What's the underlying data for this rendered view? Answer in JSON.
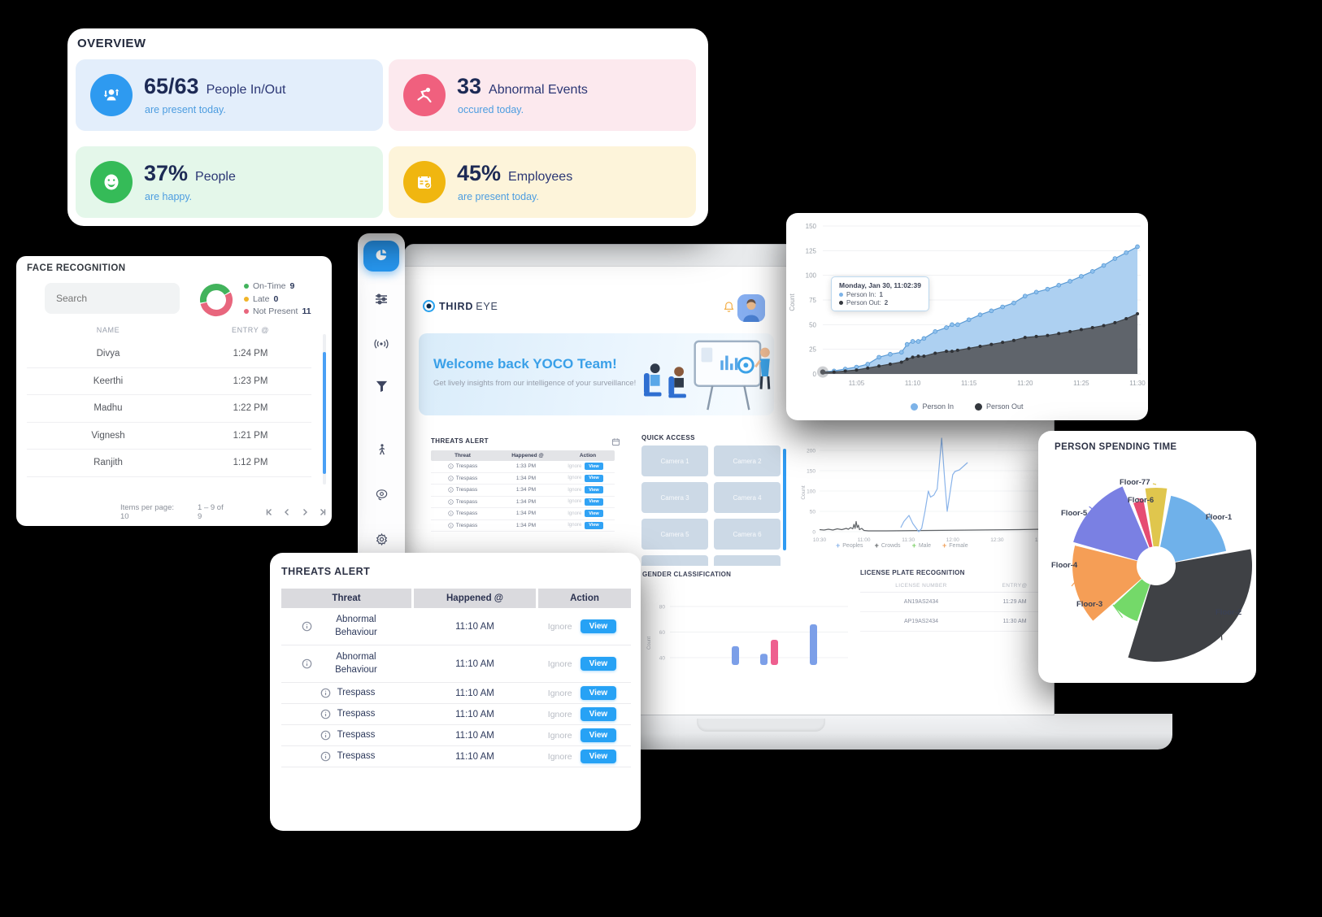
{
  "overview": {
    "title": "OVERVIEW",
    "stats": [
      {
        "value": "65/63",
        "label": "People In/Out",
        "sub": "are present today.",
        "tile_bg": "#e3eefb",
        "icon_bg": "#2e9af0",
        "icon": "people-inout"
      },
      {
        "value": "33",
        "label": "Abnormal Events",
        "sub": "occured today.",
        "tile_bg": "#fce9ee",
        "icon_bg": "#f0607e",
        "icon": "abnormal-event"
      },
      {
        "value": "37%",
        "label": "People",
        "sub": "are happy.",
        "tile_bg": "#e4f7ea",
        "icon_bg": "#35bb58",
        "icon": "happy-face"
      },
      {
        "value": "45%",
        "label": "Employees",
        "sub": "are present today.",
        "tile_bg": "#fdf4da",
        "icon_bg": "#f0b610",
        "icon": "employees-calendar"
      }
    ]
  },
  "face_recognition": {
    "title": "FACE RECOGNITION",
    "search_placeholder": "Search",
    "columns": [
      "NAME",
      "ENTRY @"
    ],
    "rows": [
      [
        "Divya",
        "1:24 PM"
      ],
      [
        "Keerthi",
        "1:23 PM"
      ],
      [
        "Madhu",
        "1:22 PM"
      ],
      [
        "Vignesh",
        "1:21 PM"
      ],
      [
        "Ranjith",
        "1:12 PM"
      ]
    ],
    "items_per_page_label": "Items per page: 10",
    "range_label": "1 – 9 of 9"
  },
  "sidebar": {
    "icons": [
      "dashboard-pie",
      "sliders",
      "broadcast",
      "filter",
      "pedestrian",
      "ai-vision",
      "settings"
    ]
  },
  "dashboard": {
    "logo_primary": "THIRD",
    "logo_secondary": "EYE",
    "welcome_title": "Welcome back YOCO Team!",
    "welcome_sub": "Get lively insights from our intelligence of your surveillance!",
    "threats_mini": {
      "title": "THREATS ALERT",
      "columns": [
        "Threat",
        "Happened @",
        "Action"
      ],
      "rows": [
        [
          "Trespass",
          "1:33 PM"
        ],
        [
          "Trespass",
          "1:34 PM"
        ],
        [
          "Trespass",
          "1:34 PM"
        ],
        [
          "Trespass",
          "1:34 PM"
        ],
        [
          "Trespass",
          "1:34 PM"
        ],
        [
          "Trespass",
          "1:34 PM"
        ]
      ],
      "ignore_label": "Ignore",
      "view_label": "View"
    },
    "quick_access": {
      "title": "QUICK ACCESS",
      "cameras": [
        "Camera 1",
        "Camera 2",
        "Camera 3",
        "Camera 4",
        "Camera 5",
        "Camera 6",
        "",
        ""
      ]
    },
    "license": {
      "title": "LICENSE PLATE RECOGNITION",
      "columns": [
        "LICENSE NUMBER",
        "ENTRY@"
      ],
      "rows": [
        [
          "AN19AS2434",
          "11:29 AM"
        ],
        [
          "AP19AS2434",
          "11:30 AM"
        ]
      ]
    }
  },
  "threats_card": {
    "title": "THREATS ALERT",
    "columns": [
      "Threat",
      "Happened @",
      "Action"
    ],
    "rows": [
      {
        "threat": "Abnormal Behaviour",
        "time": "11:10 AM"
      },
      {
        "threat": "Abnormal Behaviour",
        "time": "11:10 AM"
      },
      {
        "threat": "Trespass",
        "time": "11:10 AM"
      },
      {
        "threat": "Trespass",
        "time": "11:10 AM"
      },
      {
        "threat": "Trespass",
        "time": "11:10 AM"
      },
      {
        "threat": "Trespass",
        "time": "11:10 AM"
      }
    ],
    "ignore_label": "Ignore",
    "view_label": "View"
  },
  "chart_data": [
    {
      "id": "person_in_out",
      "type": "area",
      "ylabel": "Count",
      "ylim": [
        0,
        150
      ],
      "yticks": [
        0,
        25,
        50,
        75,
        100,
        125,
        150
      ],
      "xticks": [
        "11:05",
        "11:10",
        "11:15",
        "11:20",
        "11:25",
        "11:30"
      ],
      "xtick_minutes": [
        5,
        10,
        15,
        20,
        25,
        30
      ],
      "x_minutes": [
        2,
        3,
        4,
        5,
        6,
        7,
        8,
        9,
        9.5,
        10,
        10.5,
        11,
        12,
        13,
        13.5,
        14,
        15,
        16,
        17,
        18,
        19,
        20,
        21,
        22,
        23,
        24,
        25,
        26,
        27,
        28,
        29,
        30
      ],
      "series": [
        {
          "name": "Person In",
          "color": "#5b9bd5",
          "fill": "#a9cdf0",
          "values": [
            2,
            3,
            5,
            7,
            10,
            17,
            20,
            22,
            30,
            33,
            33,
            36,
            43,
            47,
            50,
            50,
            55,
            60,
            64,
            68,
            72,
            79,
            83,
            86,
            90,
            94,
            99,
            104,
            110,
            117,
            123,
            129
          ]
        },
        {
          "name": "Person Out",
          "color": "#3f4348",
          "fill": "#5c6066",
          "values": [
            2,
            2,
            3,
            4,
            6,
            8,
            10,
            12,
            15,
            17,
            18,
            18,
            21,
            23,
            23,
            24,
            26,
            28,
            30,
            32,
            34,
            37,
            38,
            39,
            41,
            43,
            45,
            47,
            49,
            52,
            56,
            61
          ]
        }
      ],
      "tooltip": {
        "title": "Monday, Jan 30, 11:02:39",
        "rows": [
          {
            "label": "Person In",
            "value": "1",
            "color": "#7db3e8"
          },
          {
            "label": "Person Out",
            "value": "2",
            "color": "#34383e"
          }
        ]
      },
      "legend_position": "bottom"
    },
    {
      "id": "people_count",
      "type": "line",
      "ylabel": "Count",
      "yticks": [
        0,
        50,
        100,
        150,
        200
      ],
      "xticks": [
        "10:30",
        "11:00",
        "11:30",
        "12:00",
        "12:30",
        "13:00"
      ],
      "series": [
        {
          "name": "Peoples",
          "color": "#8ab4ea",
          "x": [
            0.366,
            0.38,
            0.403,
            0.42,
            0.447,
            0.46,
            0.475,
            0.49,
            0.5,
            0.515,
            0.53,
            0.55,
            0.565,
            0.575,
            0.6,
            0.61,
            0.63,
            0.667
          ],
          "values": [
            10,
            25,
            40,
            20,
            0,
            8,
            50,
            100,
            85,
            90,
            105,
            230,
            120,
            50,
            140,
            148,
            152,
            170
          ]
        },
        {
          "name": "Crowds",
          "color": "#606468",
          "x": [
            0,
            0.02,
            0.04,
            0.06,
            0.08,
            0.1,
            0.12,
            0.13,
            0.14,
            0.15,
            0.155,
            0.16,
            0.165,
            0.17,
            0.175,
            0.18,
            0.19,
            0.2,
            0.22,
            0.3,
            0.5,
            0.7,
            0.9,
            1.0
          ],
          "values": [
            5,
            4,
            6,
            4,
            7,
            5,
            8,
            6,
            10,
            7,
            18,
            8,
            25,
            10,
            16,
            5,
            8,
            3,
            2,
            2,
            3,
            4,
            5,
            6
          ]
        },
        {
          "name": "Male",
          "color": "#7ed06a",
          "x": [],
          "values": []
        },
        {
          "name": "Female",
          "color": "#f0a05a",
          "x": [],
          "values": []
        }
      ]
    },
    {
      "id": "gender_classification",
      "type": "bar",
      "title": "GENDER CLASSIFICATION",
      "ylabel": "Count",
      "yticks": [
        40,
        60,
        80
      ],
      "bars": [
        {
          "x": 112,
          "value": 49,
          "color": "#7c9fe8"
        },
        {
          "x": 147,
          "value": 43,
          "color": "#7c9fe8"
        },
        {
          "x": 160,
          "value": 54,
          "color": "#ee5f8f"
        },
        {
          "x": 208,
          "value": 66,
          "color": "#7c9fe8"
        }
      ]
    },
    {
      "id": "person_spending_time",
      "type": "polar",
      "title": "PERSON SPENDING TIME",
      "slices": [
        {
          "label": "Floor-1",
          "color": "#6fb1ea",
          "start": 12,
          "end": 78,
          "radius": 88
        },
        {
          "label": "Floor-2",
          "color": "#3f4145",
          "start": 80,
          "end": 197,
          "radius": 118
        },
        {
          "label": "Floor-3",
          "color": "#74d969",
          "start": 199,
          "end": 227,
          "radius": 72
        },
        {
          "label": "Floor-4",
          "color": "#f59e56",
          "start": 229,
          "end": 284,
          "radius": 103
        },
        {
          "label": "Floor-5",
          "color": "#7a80e3",
          "start": 286,
          "end": 337,
          "radius": 106
        },
        {
          "label": "Floor-6",
          "color": "#e64c72",
          "start": 340,
          "end": 349,
          "radius": 82
        },
        {
          "label": "Floor-77",
          "color": "#e0c64d",
          "start": 352,
          "end": 368,
          "radius": 96
        }
      ]
    },
    {
      "id": "attendance_donut",
      "type": "donut",
      "slices": [
        {
          "label": "On-Time",
          "value": 9,
          "color": "#42b35c"
        },
        {
          "label": "Late",
          "value": 0,
          "color": "#f0b429"
        },
        {
          "label": "Not Present",
          "value": 11,
          "color": "#e8667d"
        }
      ]
    }
  ]
}
